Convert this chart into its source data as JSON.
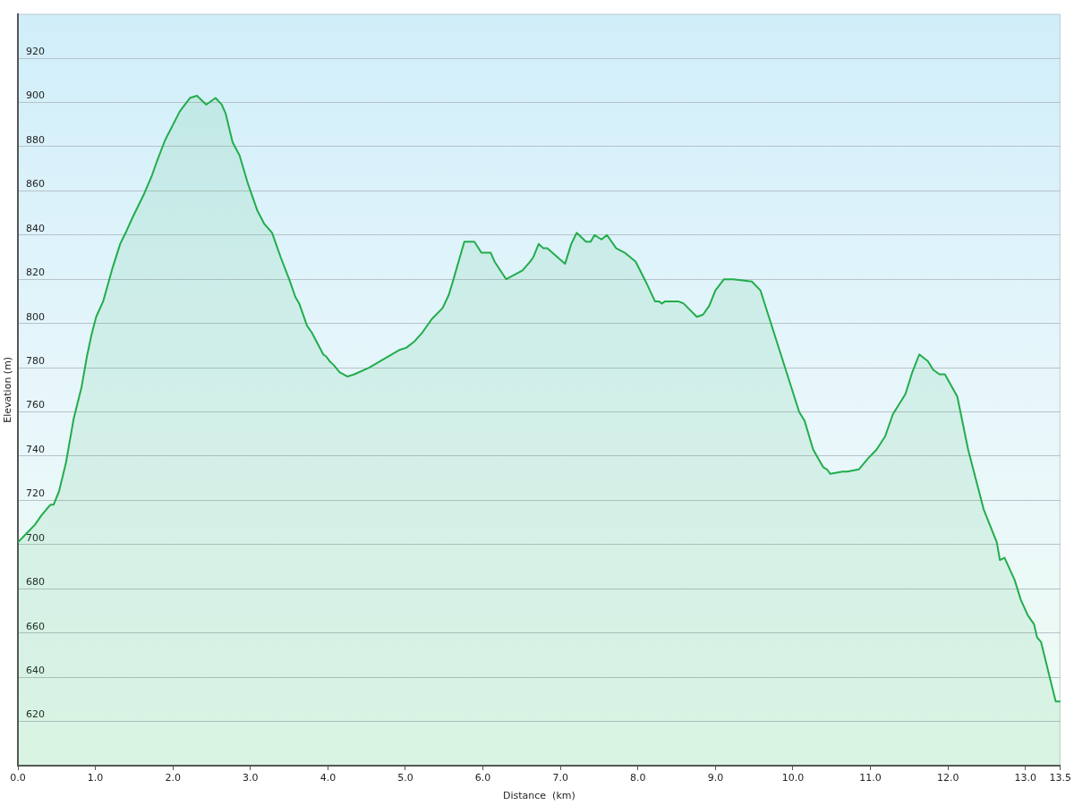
{
  "chart_data": {
    "type": "area",
    "xlabel": "Distance  (km)",
    "ylabel": "Elevation (m)",
    "x": [
      0.0,
      0.11,
      0.22,
      0.3,
      0.37,
      0.42,
      0.46,
      0.53,
      0.62,
      0.72,
      0.82,
      0.89,
      0.95,
      1.01,
      1.1,
      1.22,
      1.32,
      1.39,
      1.48,
      1.62,
      1.73,
      1.79,
      1.9,
      2.09,
      2.22,
      2.31,
      2.43,
      2.55,
      2.63,
      2.68,
      2.77,
      2.86,
      2.97,
      3.09,
      3.18,
      3.28,
      3.39,
      3.5,
      3.52,
      3.58,
      3.63,
      3.73,
      3.79,
      3.94,
      3.98,
      4.02,
      4.08,
      4.15,
      4.25,
      4.34,
      4.53,
      4.92,
      5.01,
      5.12,
      5.22,
      5.34,
      5.48,
      5.56,
      5.62,
      5.76,
      5.89,
      5.98,
      6.1,
      6.15,
      6.3,
      6.51,
      6.61,
      6.65,
      6.72,
      6.78,
      6.83,
      7.06,
      7.14,
      7.21,
      7.33,
      7.39,
      7.44,
      7.53,
      7.6,
      7.72,
      7.83,
      7.97,
      8.1,
      8.22,
      8.27,
      8.31,
      8.35,
      8.42,
      8.52,
      8.59,
      8.76,
      8.84,
      8.92,
      9.0,
      9.11,
      9.23,
      9.47,
      9.58,
      10.08,
      10.15,
      10.26,
      10.39,
      10.44,
      10.48,
      10.64,
      10.7,
      10.85,
      10.97,
      11.08,
      11.19,
      11.29,
      11.45,
      11.54,
      11.63,
      11.74,
      11.81,
      11.89,
      11.96,
      12.12,
      12.26,
      12.46,
      12.63,
      12.67,
      12.73,
      12.86,
      12.94,
      13.03,
      13.11,
      13.15,
      13.2,
      13.39,
      13.45
    ],
    "values": [
      701,
      705,
      709,
      713,
      716,
      718,
      718,
      724,
      737,
      757,
      771,
      785,
      795,
      803,
      810,
      825,
      836,
      841,
      848,
      858,
      867,
      873,
      883,
      896,
      902,
      903,
      899,
      902,
      899,
      895,
      882,
      876,
      863,
      851,
      845,
      841,
      830,
      820,
      818,
      812,
      809,
      799,
      796,
      786,
      785,
      783,
      781,
      778,
      776,
      777,
      780,
      788,
      789,
      792,
      796,
      802,
      807,
      813,
      820,
      837,
      837,
      832,
      832,
      828,
      820,
      824,
      828,
      830,
      836,
      834,
      834,
      827,
      836,
      841,
      837,
      837,
      840,
      838,
      840,
      834,
      832,
      828,
      819,
      810,
      810,
      809,
      810,
      810,
      810,
      809,
      803,
      804,
      808,
      815,
      820,
      820,
      819,
      815,
      760,
      756,
      743,
      735,
      734,
      732,
      733,
      733,
      734,
      739,
      743,
      749,
      759,
      768,
      778,
      786,
      783,
      779,
      777,
      777,
      767,
      743,
      716,
      701,
      693,
      694,
      684,
      675,
      668,
      664,
      658,
      656,
      629,
      629
    ],
    "color": "#21ad4b",
    "xlim": [
      0,
      13.45
    ],
    "ylim": [
      600,
      940
    ],
    "xticks": [
      {
        "value": 0,
        "label": "0.0"
      },
      {
        "value": 1,
        "label": "1.0"
      },
      {
        "value": 2,
        "label": "2.0"
      },
      {
        "value": 3,
        "label": "3.0"
      },
      {
        "value": 4,
        "label": "4.0"
      },
      {
        "value": 5,
        "label": "5.0"
      },
      {
        "value": 6,
        "label": "6.0"
      },
      {
        "value": 7,
        "label": "7.0"
      },
      {
        "value": 8,
        "label": "8.0"
      },
      {
        "value": 9,
        "label": "9.0"
      },
      {
        "value": 10,
        "label": "10.0"
      },
      {
        "value": 11,
        "label": "11.0"
      },
      {
        "value": 12,
        "label": "12.0"
      },
      {
        "value": 13,
        "label": "13.0"
      },
      {
        "value": 13.45,
        "label": "13.5"
      }
    ],
    "yticks": [
      620,
      640,
      660,
      680,
      700,
      720,
      740,
      760,
      780,
      800,
      820,
      840,
      860,
      880,
      900,
      920
    ],
    "grid": "y"
  }
}
